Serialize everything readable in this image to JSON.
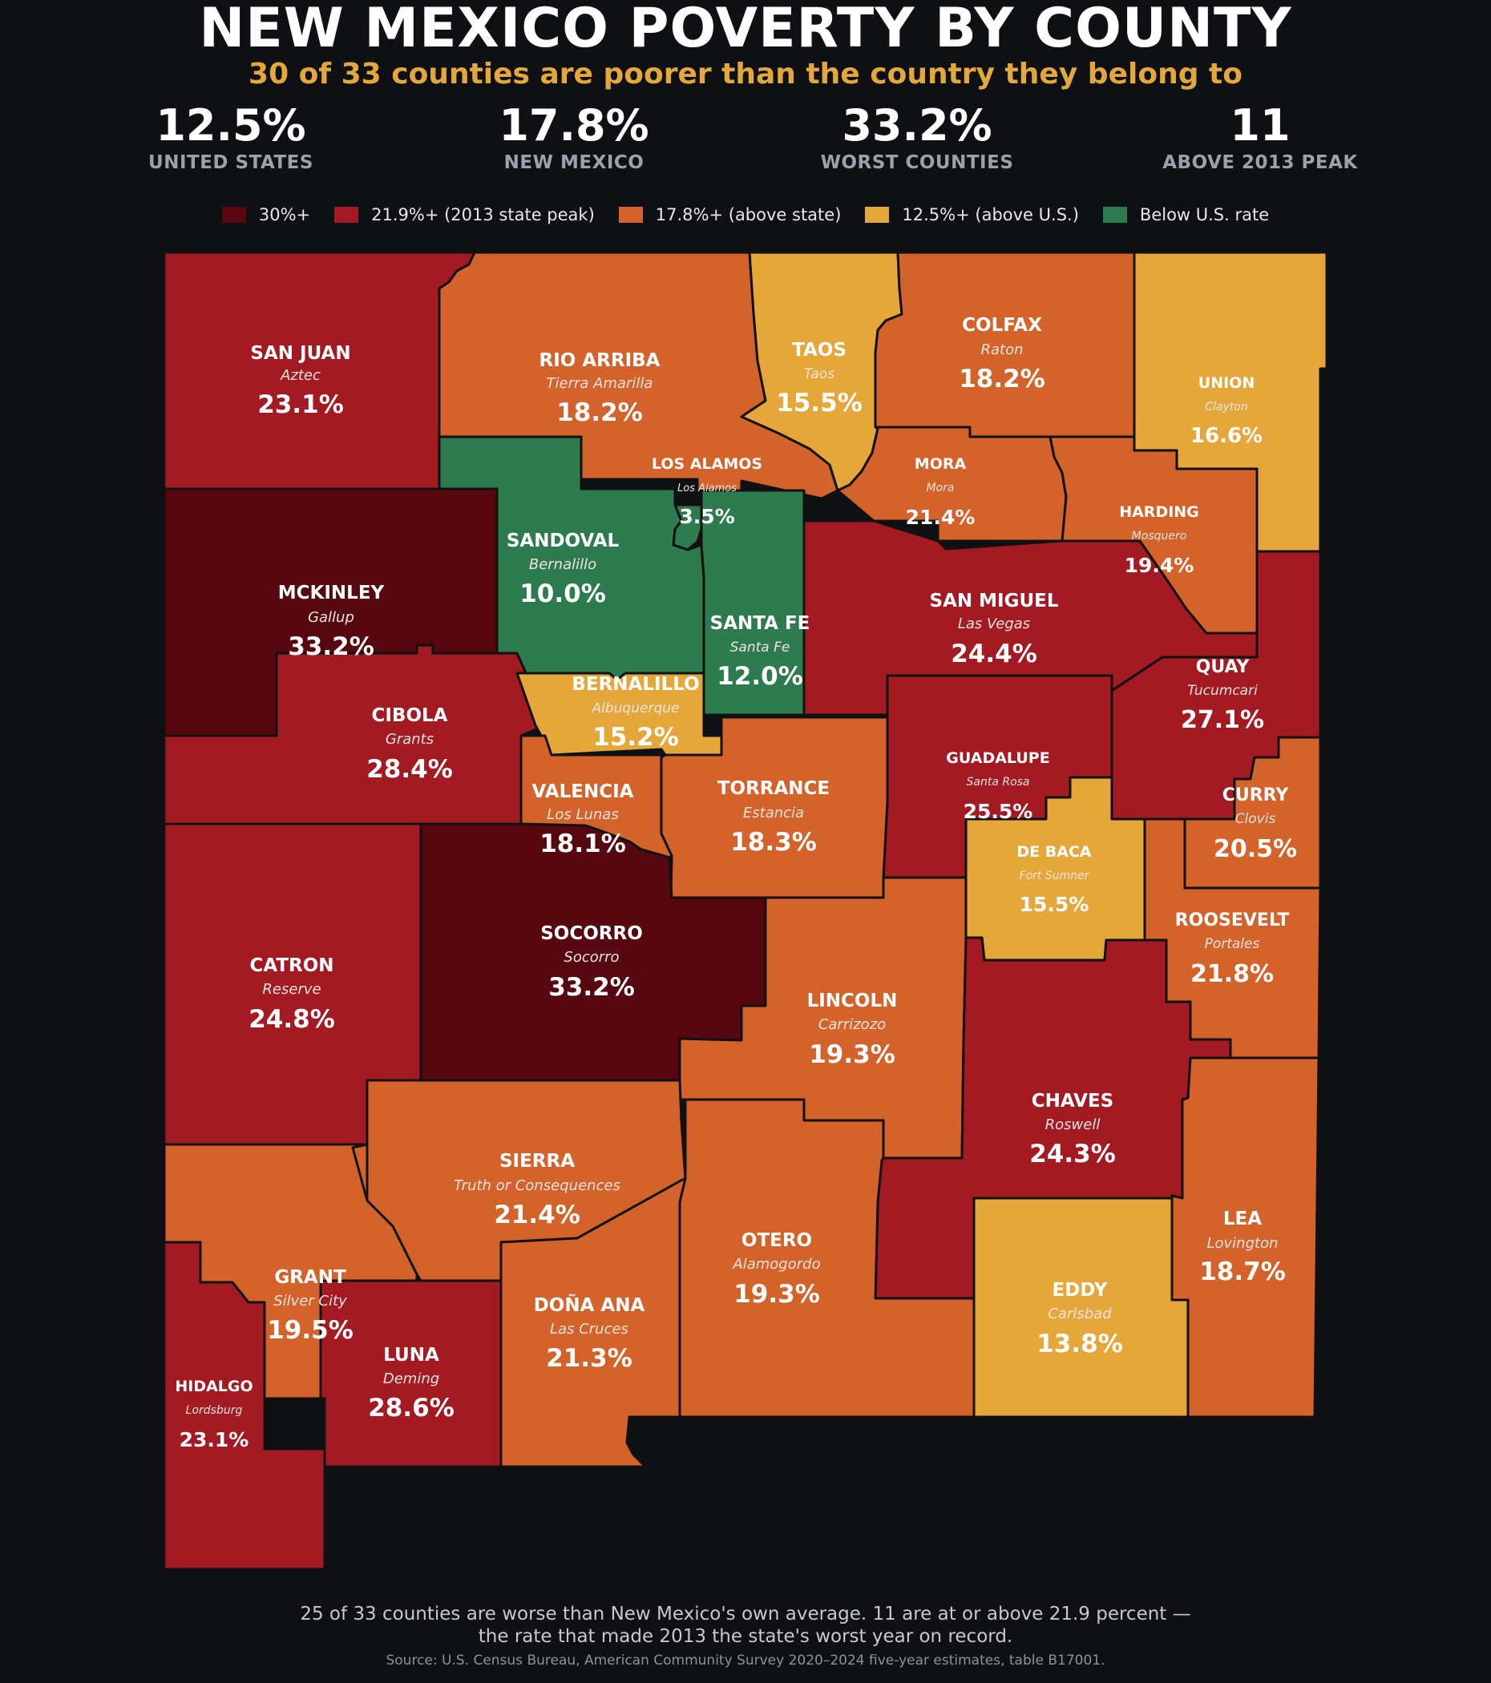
{
  "title": "NEW MEXICO POVERTY BY COUNTY",
  "subtitle": "30 of 33 counties are poorer than the country they belong to",
  "stats": [
    {
      "value": "12.5%",
      "label": "UNITED STATES"
    },
    {
      "value": "17.8%",
      "label": "NEW MEXICO"
    },
    {
      "value": "33.2%",
      "label": "WORST COUNTIES"
    },
    {
      "value": "11",
      "label": "ABOVE 2013 PEAK"
    }
  ],
  "legend": [
    {
      "label": "30%+",
      "color": "#560710"
    },
    {
      "label": "21.9%+  (2013 state peak)",
      "color": "#a31a23"
    },
    {
      "label": "17.8%+  (above state)",
      "color": "#d4632b"
    },
    {
      "label": "12.5%+  (above U.S.)",
      "color": "#e6a73a"
    },
    {
      "label": "Below U.S. rate",
      "color": "#2d7b4e"
    }
  ],
  "colors": {
    "c30": "#560710",
    "c219": "#a31a23",
    "c178": "#d4632b",
    "c125": "#e6a73a",
    "below": "#2d7b4e"
  },
  "counties": [
    {
      "name": "SAN JUAN",
      "seat": "Aztec",
      "value": "23.1%"
    },
    {
      "name": "RIO ARRIBA",
      "seat": "Tierra Amarilla",
      "value": "18.2%"
    },
    {
      "name": "TAOS",
      "seat": "Taos",
      "value": "15.5%"
    },
    {
      "name": "COLFAX",
      "seat": "Raton",
      "value": "18.2%"
    },
    {
      "name": "UNION",
      "seat": "Clayton",
      "value": "16.6%"
    },
    {
      "name": "LOS ALAMOS",
      "seat": "Los Alamos",
      "value": "3.5%"
    },
    {
      "name": "MORA",
      "seat": "Mora",
      "value": "21.4%"
    },
    {
      "name": "HARDING",
      "seat": "Mosquero",
      "value": "19.4%"
    },
    {
      "name": "SANDOVAL",
      "seat": "Bernalillo",
      "value": "10.0%"
    },
    {
      "name": "MCKINLEY",
      "seat": "Gallup",
      "value": "33.2%"
    },
    {
      "name": "SAN MIGUEL",
      "seat": "Las Vegas",
      "value": "24.4%"
    },
    {
      "name": "SANTA FE",
      "seat": "Santa Fe",
      "value": "12.0%"
    },
    {
      "name": "QUAY",
      "seat": "Tucumcari",
      "value": "27.1%"
    },
    {
      "name": "CIBOLA",
      "seat": "Grants",
      "value": "28.4%"
    },
    {
      "name": "BERNALILLO",
      "seat": "Albuquerque",
      "value": "15.2%"
    },
    {
      "name": "GUADALUPE",
      "seat": "Santa Rosa",
      "value": "25.5%"
    },
    {
      "name": "TORRANCE",
      "seat": "Estancia",
      "value": "18.3%"
    },
    {
      "name": "VALENCIA",
      "seat": "Los Lunas",
      "value": "18.1%"
    },
    {
      "name": "CURRY",
      "seat": "Clovis",
      "value": "20.5%"
    },
    {
      "name": "DE BACA",
      "seat": "Fort Sumner",
      "value": "15.5%"
    },
    {
      "name": "ROOSEVELT",
      "seat": "Portales",
      "value": "21.8%"
    },
    {
      "name": "SOCORRO",
      "seat": "Socorro",
      "value": "33.2%"
    },
    {
      "name": "CATRON",
      "seat": "Reserve",
      "value": "24.8%"
    },
    {
      "name": "LINCOLN",
      "seat": "Carrizozo",
      "value": "19.3%"
    },
    {
      "name": "CHAVES",
      "seat": "Roswell",
      "value": "24.3%"
    },
    {
      "name": "SIERRA",
      "seat": "Truth or Consequences",
      "value": "21.4%"
    },
    {
      "name": "OTERO",
      "seat": "Alamogordo",
      "value": "19.3%"
    },
    {
      "name": "LEA",
      "seat": "Lovington",
      "value": "18.7%"
    },
    {
      "name": "GRANT",
      "seat": "Silver City",
      "value": "19.5%"
    },
    {
      "name": "EDDY",
      "seat": "Carlsbad",
      "value": "13.8%"
    },
    {
      "name": "DOÑA ANA",
      "seat": "Las Cruces",
      "value": "21.3%"
    },
    {
      "name": "LUNA",
      "seat": "Deming",
      "value": "28.6%"
    },
    {
      "name": "HIDALGO",
      "seat": "Lordsburg",
      "value": "23.1%"
    }
  ],
  "footer": {
    "line1": "25 of 33 counties are worse than New Mexico's own average. 11 are at or above 21.9 percent —",
    "line2": "the rate that made 2013 the state's worst year on record.",
    "source": "Source: U.S. Census Bureau, American Community Survey 2020–2024 five-year estimates, table B17001."
  }
}
